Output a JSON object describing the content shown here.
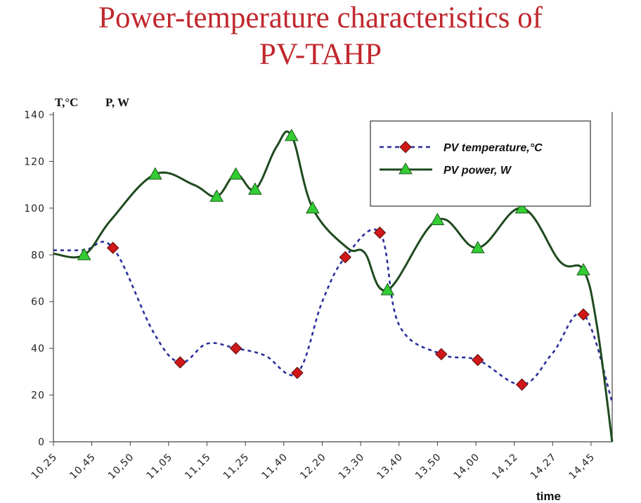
{
  "slide": {
    "title_line1": "Power-temperature characteristics of",
    "title_line2": "PV-TAHP"
  },
  "chart_data": {
    "type": "line",
    "title": "",
    "y_axis_label_left": "T,°C",
    "y_axis_label_right": "P, W",
    "xlabel": "time",
    "ylim": [
      0,
      140
    ],
    "yticks": [
      0,
      20,
      40,
      60,
      80,
      100,
      120,
      140
    ],
    "xticks": [
      "10,25",
      "10,45",
      "10,50",
      "11,05",
      "11,15",
      "11,25",
      "11,40",
      "12,20",
      "13,30",
      "13,40",
      "13,50",
      "14,00",
      "14,12",
      "14,27",
      "14,45"
    ],
    "grid": false,
    "legend_position": "top-right",
    "colors": {
      "temperature": "#2a2f9a",
      "power": "#1f4a1f",
      "marker_temp": "#d01818",
      "marker_power": "#33cc33"
    },
    "series": [
      {
        "name": "PV temperature,°C",
        "style": "dashed",
        "marker": "diamond",
        "points": [
          {
            "x": 0,
            "y": 82,
            "marker": false
          },
          {
            "x": 0.8,
            "y": 82,
            "marker": false
          },
          {
            "x": 1.55,
            "y": 83,
            "marker": true
          },
          {
            "x": 2.6,
            "y": 47,
            "marker": false
          },
          {
            "x": 3.3,
            "y": 34,
            "marker": true
          },
          {
            "x": 4.0,
            "y": 42,
            "marker": false
          },
          {
            "x": 4.75,
            "y": 40,
            "marker": true
          },
          {
            "x": 5.5,
            "y": 37,
            "marker": false
          },
          {
            "x": 6.35,
            "y": 29.5,
            "marker": true
          },
          {
            "x": 7.0,
            "y": 60,
            "marker": false
          },
          {
            "x": 7.6,
            "y": 79,
            "marker": true
          },
          {
            "x": 8.5,
            "y": 89.5,
            "marker": true
          },
          {
            "x": 9.0,
            "y": 50,
            "marker": false
          },
          {
            "x": 10.1,
            "y": 37.5,
            "marker": true
          },
          {
            "x": 11.05,
            "y": 35,
            "marker": true
          },
          {
            "x": 12.2,
            "y": 24.5,
            "marker": true
          },
          {
            "x": 13.0,
            "y": 38,
            "marker": false
          },
          {
            "x": 13.8,
            "y": 54.5,
            "marker": true
          },
          {
            "x": 14.55,
            "y": 17,
            "marker": false
          }
        ]
      },
      {
        "name": "PV power, W",
        "style": "solid",
        "marker": "triangle",
        "points": [
          {
            "x": 0,
            "y": 80.5,
            "marker": false
          },
          {
            "x": 0.8,
            "y": 80,
            "marker": true
          },
          {
            "x": 1.5,
            "y": 95,
            "marker": false
          },
          {
            "x": 2.65,
            "y": 114.5,
            "marker": true
          },
          {
            "x": 3.65,
            "y": 110,
            "marker": false
          },
          {
            "x": 4.25,
            "y": 105,
            "marker": true
          },
          {
            "x": 4.75,
            "y": 114.5,
            "marker": true
          },
          {
            "x": 5.25,
            "y": 108,
            "marker": true
          },
          {
            "x": 5.8,
            "y": 126,
            "marker": false
          },
          {
            "x": 6.2,
            "y": 131,
            "marker": true
          },
          {
            "x": 6.75,
            "y": 100,
            "marker": true
          },
          {
            "x": 7.65,
            "y": 83,
            "marker": false
          },
          {
            "x": 8.1,
            "y": 81,
            "marker": false
          },
          {
            "x": 8.7,
            "y": 65,
            "marker": true
          },
          {
            "x": 10.0,
            "y": 95,
            "marker": true
          },
          {
            "x": 11.05,
            "y": 83,
            "marker": true
          },
          {
            "x": 12.2,
            "y": 100,
            "marker": true
          },
          {
            "x": 13.2,
            "y": 77,
            "marker": false
          },
          {
            "x": 13.8,
            "y": 73.5,
            "marker": true
          },
          {
            "x": 14.15,
            "y": 50,
            "marker": false
          },
          {
            "x": 14.55,
            "y": 0,
            "marker": false
          }
        ]
      }
    ]
  }
}
